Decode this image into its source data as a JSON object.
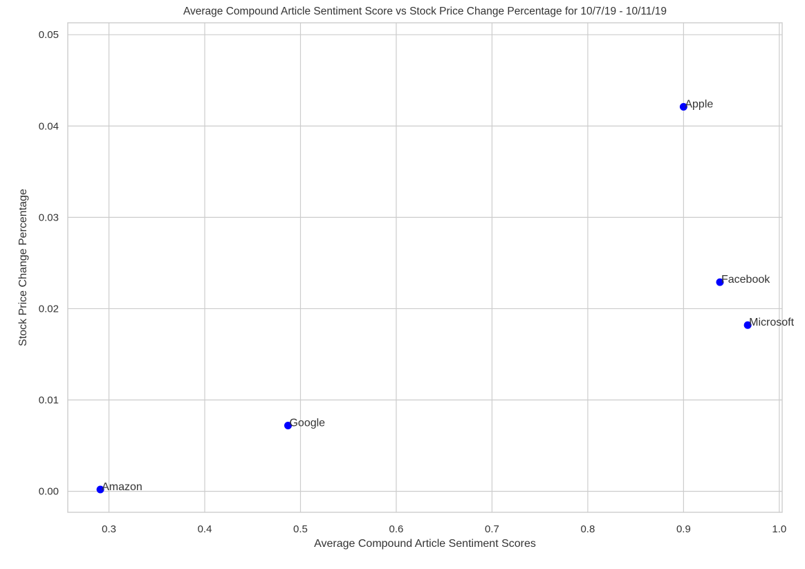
{
  "chart_data": {
    "type": "scatter",
    "title": "Average Compound Article Sentiment Score vs Stock Price Change Percentage for 10/7/19 - 10/11/19",
    "xlabel": "Average Compound Article Sentiment Scores",
    "ylabel": "Stock Price Change Percentage",
    "xlim": [
      0.257,
      1.003
    ],
    "ylim": [
      -0.0023,
      0.0513
    ],
    "grid": true,
    "x_ticks": [
      0.3,
      0.4,
      0.5,
      0.6,
      0.7,
      0.8,
      0.9,
      1.0
    ],
    "x_tick_labels": [
      "0.3",
      "0.4",
      "0.5",
      "0.6",
      "0.7",
      "0.8",
      "0.9",
      "1.0"
    ],
    "y_ticks": [
      0.0,
      0.01,
      0.02,
      0.03,
      0.04,
      0.05
    ],
    "y_tick_labels": [
      "0.00",
      "0.01",
      "0.02",
      "0.03",
      "0.04",
      "0.05"
    ],
    "point_color": "#0000ff",
    "points": [
      {
        "label": "Amazon",
        "x": 0.291,
        "y": 0.0002
      },
      {
        "label": "Google",
        "x": 0.487,
        "y": 0.0072
      },
      {
        "label": "Apple",
        "x": 0.9,
        "y": 0.0421
      },
      {
        "label": "Facebook",
        "x": 0.938,
        "y": 0.0229
      },
      {
        "label": "Microsoft",
        "x": 0.967,
        "y": 0.0182
      }
    ]
  }
}
